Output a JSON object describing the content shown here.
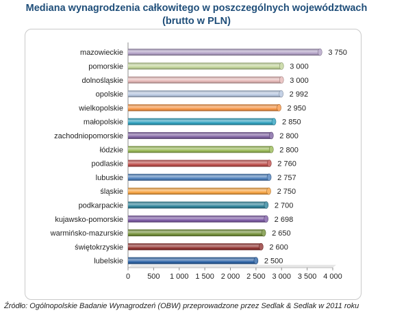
{
  "title_line1": "Mediana wynagrodzenia całkowitego w poszczególnych województwach",
  "title_line2": "(brutto w PLN)",
  "source": "Źródło: Ogólnopolskie Badanie Wynagrodzeń (OBW) przeprowadzone przez Sedlak & Sedlak w 2011 roku",
  "chart_data": {
    "type": "bar",
    "orientation": "horizontal",
    "style": "3d-cylinder",
    "categories": [
      "mazowieckie",
      "pomorskie",
      "dolnośląskie",
      "opolskie",
      "wielkopolskie",
      "małopolskie",
      "zachodniopomorskie",
      "łódzkie",
      "podlaskie",
      "lubuskie",
      "śląskie",
      "podkarpackie",
      "kujawsko-pomorskie",
      "warmińsko-mazurskie",
      "świętokrzyskie",
      "lubelskie"
    ],
    "values": [
      3750,
      3000,
      3000,
      2992,
      2950,
      2850,
      2800,
      2800,
      2760,
      2757,
      2750,
      2700,
      2698,
      2650,
      2600,
      2500
    ],
    "value_labels": [
      "3 750",
      "3 000",
      "3 000",
      "2 992",
      "2 950",
      "2 850",
      "2 800",
      "2 800",
      "2 760",
      "2 757",
      "2 750",
      "2 700",
      "2 698",
      "2 650",
      "2 600",
      "2 500"
    ],
    "colors": [
      "#b3a2c7",
      "#c3d69b",
      "#e6b9b8",
      "#b7c7e0",
      "#f79646",
      "#31a3c0",
      "#8064a2",
      "#9bbb59",
      "#c0504d",
      "#4f81bd",
      "#f7a543",
      "#31859c",
      "#7f5ea8",
      "#77933c",
      "#943634",
      "#2e65a8"
    ],
    "xlim": [
      0,
      4000
    ],
    "x_ticks": [
      0,
      500,
      1000,
      1500,
      2000,
      2500,
      3000,
      3500,
      4000
    ],
    "x_tick_labels": [
      "0",
      "500",
      "1 000",
      "1 500",
      "2 000",
      "2 500",
      "3 000",
      "3 500",
      "4 000"
    ],
    "grid": false,
    "legend": "none"
  }
}
